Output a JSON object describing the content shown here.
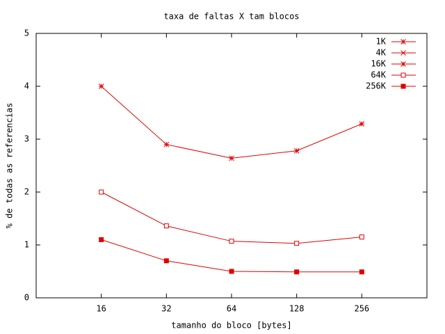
{
  "chart_data": {
    "type": "line",
    "title": "taxa de faltas X tam blocos",
    "x_label": "tamanho do bloco [bytes]",
    "y_label": "% de todas as referencias",
    "x": [
      16,
      32,
      64,
      128,
      256
    ],
    "xlog": 2,
    "xlim": [
      8,
      512
    ],
    "xticks": [
      16,
      32,
      64,
      128,
      256
    ],
    "ylim": [
      0,
      5
    ],
    "yticks": [
      0,
      1,
      2,
      3,
      4,
      5
    ],
    "legend": "top-right",
    "series": [
      {
        "name": "1K",
        "color": "#e00000",
        "marker": "star",
        "values": [
          4.0,
          2.9,
          2.64,
          2.78,
          3.29
        ]
      },
      {
        "name": "4K",
        "color": "#e00000",
        "marker": "x",
        "values": [
          null,
          null,
          null,
          null,
          null
        ]
      },
      {
        "name": "16K",
        "color": "#e00000",
        "marker": "star",
        "values": [
          null,
          null,
          null,
          null,
          null
        ]
      },
      {
        "name": "64K",
        "color": "#e00000",
        "marker": "open-square",
        "values": [
          2.0,
          1.36,
          1.07,
          1.03,
          1.15
        ]
      },
      {
        "name": "256K",
        "color": "#e00000",
        "marker": "filled-square",
        "values": [
          1.1,
          0.7,
          0.5,
          0.49,
          0.49
        ]
      }
    ]
  }
}
